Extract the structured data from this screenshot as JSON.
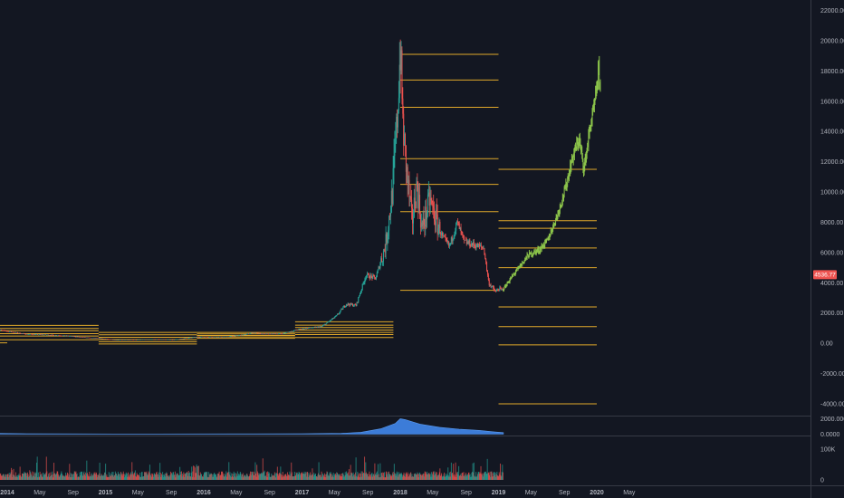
{
  "chart_data": [
    {
      "type": "candlestick",
      "name": "price-panel",
      "ylim": [
        -4800,
        22400
      ],
      "y_ticks": [
        "22000.00",
        "20000.00",
        "18000.00",
        "16000.00",
        "14000.00",
        "12000.00",
        "10000.00",
        "8000.00",
        "6000.00",
        "4000.00",
        "2000.00",
        "0.00",
        "-2000.00",
        "-4000.00"
      ],
      "y_tick_values": [
        22000,
        20000,
        18000,
        16000,
        14000,
        12000,
        10000,
        8000,
        6000,
        4000,
        2000,
        0,
        -2000,
        -4000
      ],
      "current_price_label": "4536.77",
      "current_price": 4536.77,
      "x_ticks": [
        {
          "label": "2014",
          "t": 2014.0,
          "bold": true
        },
        {
          "label": "May",
          "t": 2014.33
        },
        {
          "label": "Sep",
          "t": 2014.67
        },
        {
          "label": "2015",
          "t": 2015.0,
          "bold": true
        },
        {
          "label": "May",
          "t": 2015.33
        },
        {
          "label": "Sep",
          "t": 2015.67
        },
        {
          "label": "2016",
          "t": 2016.0,
          "bold": true
        },
        {
          "label": "May",
          "t": 2016.33
        },
        {
          "label": "Sep",
          "t": 2016.67
        },
        {
          "label": "2017",
          "t": 2017.0,
          "bold": true
        },
        {
          "label": "May",
          "t": 2017.33
        },
        {
          "label": "Sep",
          "t": 2017.67
        },
        {
          "label": "2018",
          "t": 2018.0,
          "bold": true
        },
        {
          "label": "May",
          "t": 2018.33
        },
        {
          "label": "Sep",
          "t": 2018.67
        },
        {
          "label": "2019",
          "t": 2019.0,
          "bold": true
        },
        {
          "label": "May",
          "t": 2019.33
        },
        {
          "label": "Sep",
          "t": 2019.67
        },
        {
          "label": "2020",
          "t": 2020.0,
          "bold": true
        },
        {
          "label": "May",
          "t": 2020.33
        }
      ],
      "price_path": [
        [
          2013.9,
          900
        ],
        [
          2014.05,
          750
        ],
        [
          2014.2,
          600
        ],
        [
          2014.4,
          560
        ],
        [
          2014.6,
          500
        ],
        [
          2014.8,
          380
        ],
        [
          2014.95,
          320
        ],
        [
          2015.1,
          230
        ],
        [
          2015.3,
          240
        ],
        [
          2015.5,
          270
        ],
        [
          2015.7,
          240
        ],
        [
          2015.9,
          400
        ],
        [
          2016.0,
          430
        ],
        [
          2016.2,
          420
        ],
        [
          2016.4,
          550
        ],
        [
          2016.5,
          700
        ],
        [
          2016.6,
          620
        ],
        [
          2016.8,
          640
        ],
        [
          2016.95,
          900
        ],
        [
          2017.05,
          1000
        ],
        [
          2017.2,
          1100
        ],
        [
          2017.35,
          1800
        ],
        [
          2017.45,
          2600
        ],
        [
          2017.55,
          2500
        ],
        [
          2017.65,
          4500
        ],
        [
          2017.75,
          4300
        ],
        [
          2017.85,
          6500
        ],
        [
          2017.92,
          10000
        ],
        [
          2017.97,
          15000
        ],
        [
          2018.0,
          19500
        ],
        [
          2018.03,
          14000
        ],
        [
          2018.07,
          11000
        ],
        [
          2018.12,
          8000
        ],
        [
          2018.17,
          10500
        ],
        [
          2018.22,
          7500
        ],
        [
          2018.3,
          9500
        ],
        [
          2018.37,
          8000
        ],
        [
          2018.43,
          7000
        ],
        [
          2018.5,
          6400
        ],
        [
          2018.58,
          8000
        ],
        [
          2018.65,
          6700
        ],
        [
          2018.75,
          6500
        ],
        [
          2018.85,
          6300
        ],
        [
          2018.9,
          4000
        ],
        [
          2018.97,
          3400
        ],
        [
          2019.0,
          3600
        ],
        [
          2019.05,
          3500
        ]
      ],
      "projection_path": [
        [
          2019.05,
          3600
        ],
        [
          2019.15,
          4500
        ],
        [
          2019.3,
          5800
        ],
        [
          2019.42,
          6200
        ],
        [
          2019.5,
          6800
        ],
        [
          2019.6,
          8500
        ],
        [
          2019.68,
          10200
        ],
        [
          2019.75,
          12200
        ],
        [
          2019.82,
          13500
        ],
        [
          2019.87,
          11500
        ],
        [
          2019.93,
          14200
        ],
        [
          2019.98,
          15800
        ],
        [
          2020.02,
          18000
        ],
        [
          2020.04,
          16500
        ]
      ],
      "levels": [
        {
          "t0": 2013.9,
          "t1": 2014.93,
          "y": 1180
        },
        {
          "t0": 2013.9,
          "t1": 2014.93,
          "y": 980
        },
        {
          "t0": 2013.9,
          "t1": 2014.93,
          "y": 830
        },
        {
          "t0": 2013.9,
          "t1": 2014.93,
          "y": 640
        },
        {
          "t0": 2013.9,
          "t1": 2014.93,
          "y": 480
        },
        {
          "t0": 2013.9,
          "t1": 2014.93,
          "y": 230
        },
        {
          "t0": 2013.9,
          "t1": 2014.0,
          "y": 30
        },
        {
          "t0": 2014.93,
          "t1": 2015.93,
          "y": 720
        },
        {
          "t0": 2014.93,
          "t1": 2015.93,
          "y": 560
        },
        {
          "t0": 2014.93,
          "t1": 2015.93,
          "y": 400
        },
        {
          "t0": 2014.93,
          "t1": 2015.93,
          "y": 250
        },
        {
          "t0": 2014.93,
          "t1": 2015.93,
          "y": 110
        },
        {
          "t0": 2014.93,
          "t1": 2015.93,
          "y": -40
        },
        {
          "t0": 2015.93,
          "t1": 2016.93,
          "y": 720
        },
        {
          "t0": 2015.93,
          "t1": 2016.93,
          "y": 620
        },
        {
          "t0": 2015.93,
          "t1": 2016.93,
          "y": 520
        },
        {
          "t0": 2015.93,
          "t1": 2016.93,
          "y": 420
        },
        {
          "t0": 2015.93,
          "t1": 2016.93,
          "y": 330
        },
        {
          "t0": 2016.93,
          "t1": 2017.93,
          "y": 1420
        },
        {
          "t0": 2016.93,
          "t1": 2017.93,
          "y": 1200
        },
        {
          "t0": 2016.93,
          "t1": 2017.93,
          "y": 1040
        },
        {
          "t0": 2016.93,
          "t1": 2017.93,
          "y": 880
        },
        {
          "t0": 2016.93,
          "t1": 2017.93,
          "y": 720
        },
        {
          "t0": 2016.93,
          "t1": 2017.93,
          "y": 580
        },
        {
          "t0": 2016.93,
          "t1": 2017.93,
          "y": 380
        },
        {
          "t0": 2018.0,
          "t1": 2019.0,
          "y": 19100
        },
        {
          "t0": 2018.0,
          "t1": 2019.0,
          "y": 17400
        },
        {
          "t0": 2018.0,
          "t1": 2019.0,
          "y": 15600
        },
        {
          "t0": 2018.0,
          "t1": 2019.0,
          "y": 12200
        },
        {
          "t0": 2018.0,
          "t1": 2019.0,
          "y": 10500
        },
        {
          "t0": 2018.0,
          "t1": 2019.0,
          "y": 8700
        },
        {
          "t0": 2018.0,
          "t1": 2019.0,
          "y": 3500
        },
        {
          "t0": 2019.0,
          "t1": 2020.0,
          "y": 11500
        },
        {
          "t0": 2019.0,
          "t1": 2020.0,
          "y": 8100
        },
        {
          "t0": 2019.0,
          "t1": 2020.0,
          "y": 7600
        },
        {
          "t0": 2019.0,
          "t1": 2020.0,
          "y": 6300
        },
        {
          "t0": 2019.0,
          "t1": 2020.0,
          "y": 5000
        },
        {
          "t0": 2019.0,
          "t1": 2020.0,
          "y": 2400
        },
        {
          "t0": 2019.0,
          "t1": 2020.0,
          "y": 1100
        },
        {
          "t0": 2019.0,
          "t1": 2020.0,
          "y": -100
        },
        {
          "t0": 2019.0,
          "t1": 2020.0,
          "y": -4000
        }
      ]
    },
    {
      "type": "area",
      "name": "indicator-panel",
      "y_ticks": [
        "2000.0000",
        "0.0000"
      ],
      "y_tick_values": [
        2000,
        0
      ],
      "ylim": [
        -200,
        2400
      ],
      "points": [
        [
          2013.9,
          90
        ],
        [
          2014.2,
          60
        ],
        [
          2014.7,
          30
        ],
        [
          2015.5,
          20
        ],
        [
          2016.5,
          30
        ],
        [
          2017.0,
          50
        ],
        [
          2017.4,
          100
        ],
        [
          2017.6,
          250
        ],
        [
          2017.8,
          700
        ],
        [
          2017.95,
          1400
        ],
        [
          2018.0,
          2000
        ],
        [
          2018.05,
          1900
        ],
        [
          2018.2,
          1300
        ],
        [
          2018.4,
          900
        ],
        [
          2018.6,
          650
        ],
        [
          2018.8,
          500
        ],
        [
          2018.95,
          300
        ],
        [
          2019.05,
          200
        ]
      ]
    },
    {
      "type": "bar",
      "name": "volume-panel",
      "y_ticks": [
        "100K",
        "0"
      ],
      "y_tick_values": [
        100000,
        0
      ],
      "ylim": [
        0,
        140000
      ],
      "color_up": "#26a69a",
      "color_down": "#ef5350"
    }
  ],
  "colors": {
    "background": "#131722",
    "level": "#e0a82a",
    "up": "#26a69a",
    "down": "#ef5350",
    "projection": "#8bc34a",
    "indicator_fill": "#3c7cd8",
    "badge": "#ef5350"
  }
}
